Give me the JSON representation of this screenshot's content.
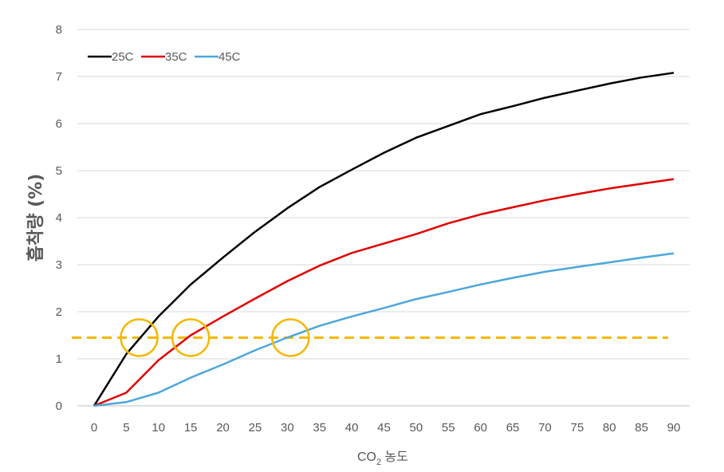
{
  "chart_data": {
    "type": "line",
    "title": "",
    "xlabel_main": "CO",
    "xlabel_sub": "2",
    "xlabel_rest": " 농도",
    "ylabel": "흡착량 (%)",
    "x": [
      0,
      5,
      10,
      15,
      20,
      25,
      30,
      35,
      40,
      45,
      50,
      55,
      60,
      65,
      70,
      75,
      80,
      85,
      90
    ],
    "xlim": [
      0,
      90
    ],
    "ylim": [
      0,
      8
    ],
    "yticks": [
      0,
      1,
      2,
      3,
      4,
      5,
      6,
      7,
      8
    ],
    "grid": true,
    "legend_position": "top-left",
    "series": [
      {
        "name": "25C",
        "color": "#000000",
        "values": [
          0,
          1.1,
          1.9,
          2.58,
          3.15,
          3.7,
          4.2,
          4.65,
          5.02,
          5.38,
          5.7,
          5.95,
          6.2,
          6.37,
          6.55,
          6.7,
          6.85,
          6.98,
          7.08
        ]
      },
      {
        "name": "35C",
        "color": "#e00000",
        "values": [
          0,
          0.28,
          0.97,
          1.5,
          1.9,
          2.28,
          2.65,
          2.98,
          3.25,
          3.45,
          3.65,
          3.88,
          4.07,
          4.22,
          4.37,
          4.5,
          4.62,
          4.72,
          4.82
        ]
      },
      {
        "name": "45C",
        "color": "#4ba7db",
        "values": [
          0,
          0.08,
          0.28,
          0.6,
          0.88,
          1.18,
          1.45,
          1.7,
          1.9,
          2.08,
          2.27,
          2.42,
          2.58,
          2.72,
          2.85,
          2.95,
          3.05,
          3.15,
          3.24
        ]
      }
    ],
    "reference_line": {
      "y": 1.45,
      "color": "#f5b800",
      "style": "dashed"
    },
    "highlight_circles": [
      {
        "x": 7,
        "y": 1.45
      },
      {
        "x": 15,
        "y": 1.45
      },
      {
        "x": 30.5,
        "y": 1.45
      }
    ]
  }
}
